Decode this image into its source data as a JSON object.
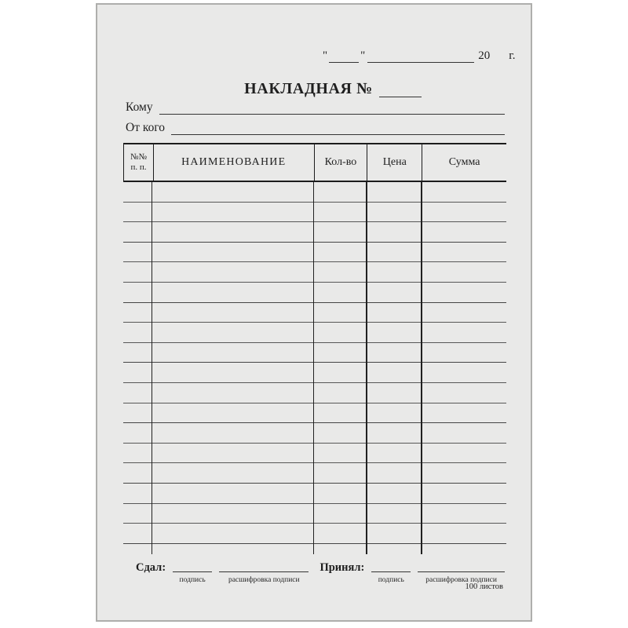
{
  "form": {
    "kind": "blank-invoice-form",
    "colors": {
      "background": "#ffffff",
      "paper": "#e9e9e8",
      "paper_edge": "#aeaeac",
      "ink": "#1f1f1f",
      "rule_dark": "#1c1c1c",
      "rule_row": "#575757"
    },
    "date_line": {
      "open_quote": "\"",
      "close_quote": "\"",
      "century": "20",
      "year_suffix": "г."
    },
    "title": "НАКЛАДНАЯ №",
    "fields": {
      "to_label": "Кому",
      "from_label": "От кого"
    },
    "table": {
      "columns": [
        {
          "key": "num",
          "label": "№№",
          "label2": "п. п."
        },
        {
          "key": "name",
          "label": "НАИМЕНОВАНИЕ"
        },
        {
          "key": "qty",
          "label": "Кол-во"
        },
        {
          "key": "price",
          "label": "Цена"
        },
        {
          "key": "sum",
          "label": "Сумма"
        }
      ],
      "empty_rows": 18,
      "cells_filled": false
    },
    "signatures": {
      "handed_label": "Сдал:",
      "received_label": "Принял:",
      "signature_caption": "подпись",
      "signature_name_caption": "расшифровка подписи"
    },
    "footer_note": "100 листов"
  }
}
